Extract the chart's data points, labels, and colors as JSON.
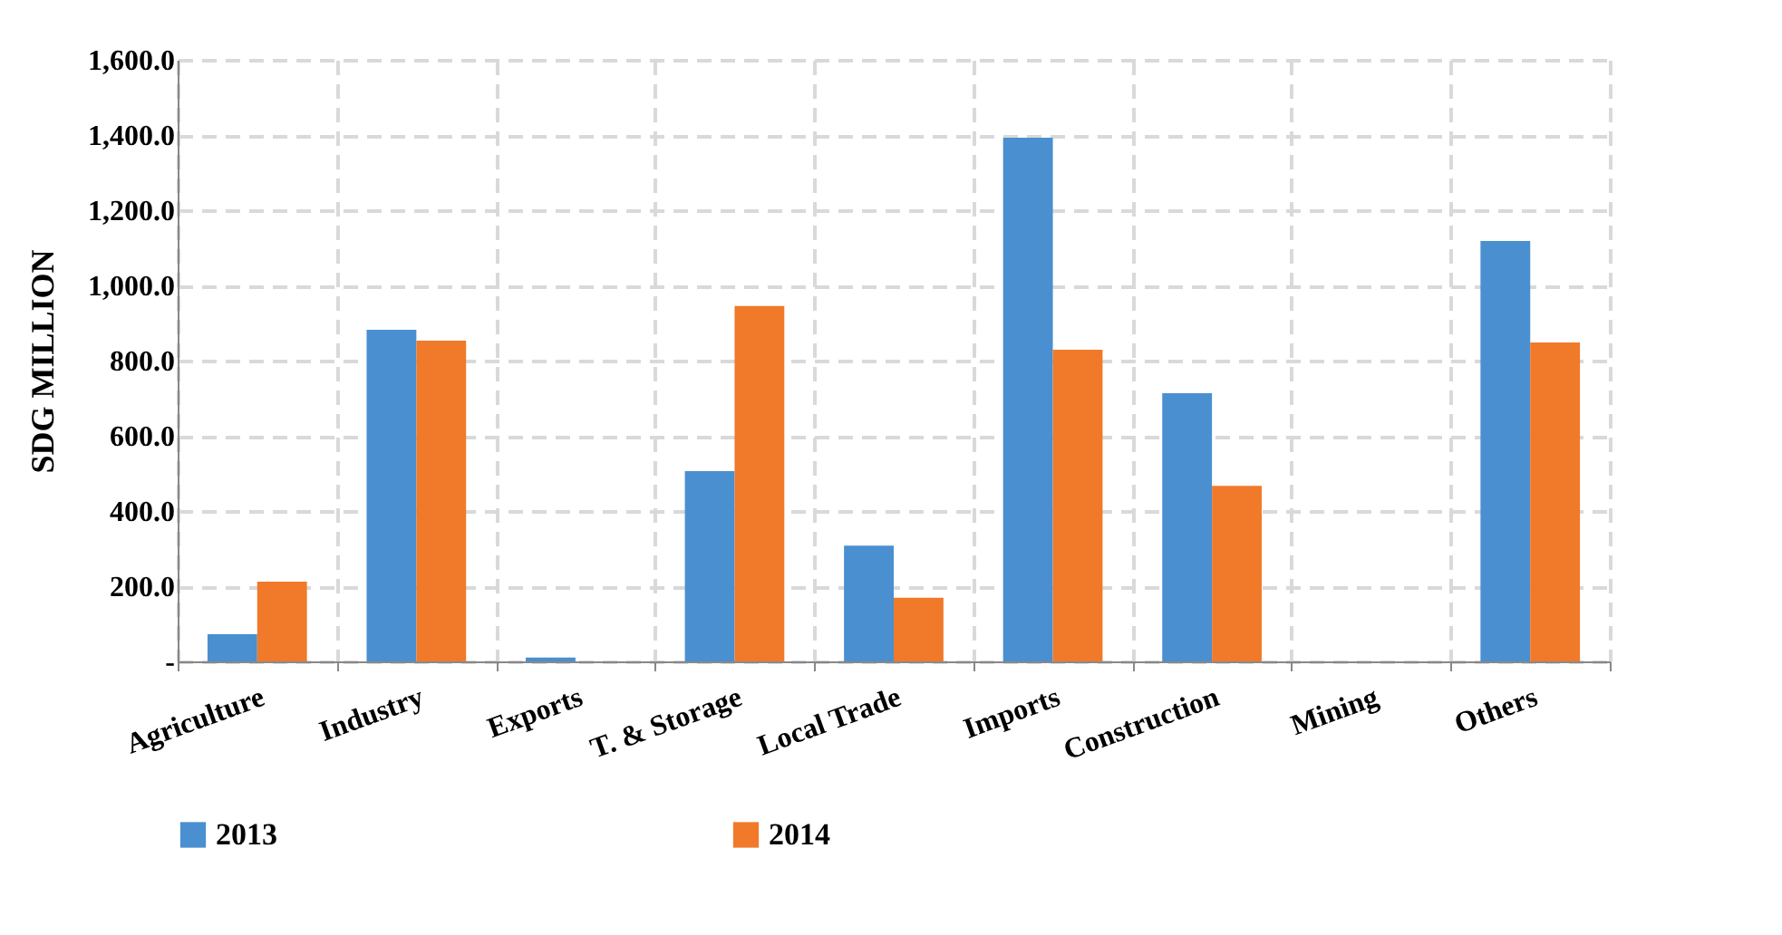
{
  "chart_data": {
    "type": "bar",
    "ylabel": "SDG MILLION",
    "categories": [
      "Agriculture",
      "Industry",
      "Exports",
      "T. & Storage",
      "Local Trade",
      "Imports",
      "Construction",
      "Mining",
      "Others"
    ],
    "series": [
      {
        "name": "2013",
        "color": "#4a8fd0",
        "values": [
          72,
          882,
          10,
          506,
          308,
          1393,
          713,
          0,
          1118
        ]
      },
      {
        "name": "2014",
        "color": "#f07a2a",
        "values": [
          212,
          853,
          0,
          945,
          169,
          829,
          467,
          0,
          848
        ]
      }
    ],
    "ylim": [
      0,
      1600
    ],
    "yticks": [
      {
        "value": 0,
        "label": "-"
      },
      {
        "value": 200,
        "label": "200.0"
      },
      {
        "value": 400,
        "label": "400.0"
      },
      {
        "value": 600,
        "label": "600.0"
      },
      {
        "value": 800,
        "label": "800.0"
      },
      {
        "value": 1000,
        "label": "1,000.0"
      },
      {
        "value": 1200,
        "label": "1,200.0"
      },
      {
        "value": 1400,
        "label": "1,400.0"
      },
      {
        "value": 1600,
        "label": "1,600.0"
      }
    ],
    "grid": true,
    "legend": "bottom"
  }
}
